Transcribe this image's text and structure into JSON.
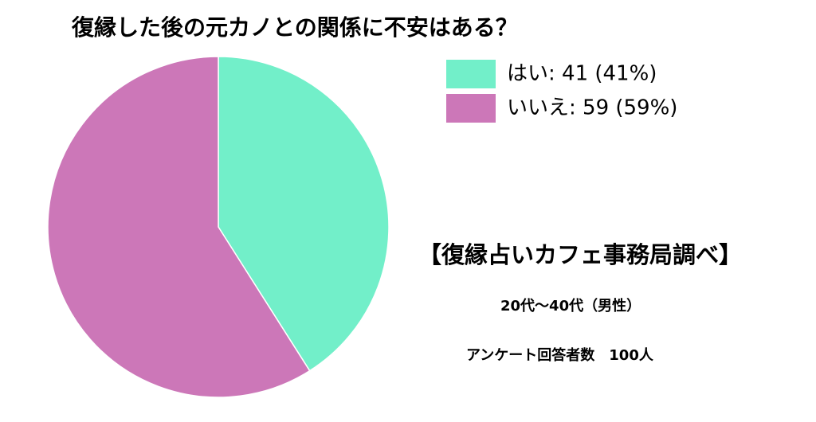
{
  "chart_data": {
    "type": "pie",
    "title": "復縁した後の元カノとの関係に不安はある？",
    "categories": [
      "はい: 41 (41%)",
      "いいえ: 59 (59%)"
    ],
    "values": [
      41,
      59
    ],
    "colors": [
      "#72efc9",
      "#cc77b8"
    ],
    "annotations": [
      "【復縁占いカフェ事務局調べ】",
      "20代〜40代（男性）",
      "アンケート回答者数　100人"
    ]
  }
}
